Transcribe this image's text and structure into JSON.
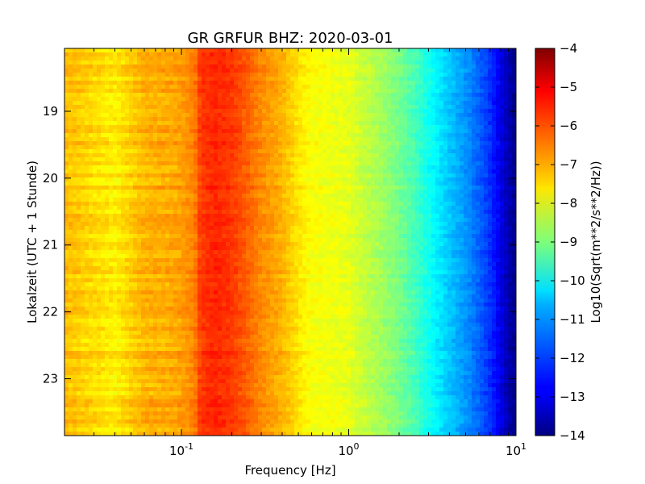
{
  "chart_data": {
    "type": "heatmap",
    "title": "GR GRFUR BHZ: 2020-03-01",
    "xlabel": "Frequency [Hz]",
    "ylabel": "Lokalzeit (UTC + 1 Stunde)",
    "x_scale": "log",
    "xlim": [
      0.02,
      10
    ],
    "x_ticks": [
      {
        "value": 0.1,
        "base": "10",
        "exp": "-1"
      },
      {
        "value": 1,
        "base": "10",
        "exp": "0"
      },
      {
        "value": 10,
        "base": "10",
        "exp": "1"
      }
    ],
    "ylim": [
      18.06,
      23.85
    ],
    "y_inverted": true,
    "y_ticks": [
      {
        "value": 19,
        "label": "19"
      },
      {
        "value": 20,
        "label": "20"
      },
      {
        "value": 21,
        "label": "21"
      },
      {
        "value": 22,
        "label": "22"
      },
      {
        "value": 23,
        "label": "23"
      }
    ],
    "colorbar": {
      "label": "Log10(Sqrt(m**2/s**2/Hz))",
      "colormap": "jet",
      "range": [
        -14,
        -4
      ],
      "ticks": [
        {
          "value": -4,
          "label": "−4"
        },
        {
          "value": -5,
          "label": "−5"
        },
        {
          "value": -6,
          "label": "−6"
        },
        {
          "value": -7,
          "label": "−7"
        },
        {
          "value": -8,
          "label": "−8"
        },
        {
          "value": -9,
          "label": "−9"
        },
        {
          "value": -10,
          "label": "−10"
        },
        {
          "value": -11,
          "label": "−11"
        },
        {
          "value": -12,
          "label": "−12"
        },
        {
          "value": -13,
          "label": "−13"
        },
        {
          "value": -14,
          "label": "−14"
        }
      ]
    },
    "spectrum_profile": {
      "frequency_hz": [
        0.02,
        0.04,
        0.06,
        0.09,
        0.1,
        0.12,
        0.13,
        0.16,
        0.2,
        0.25,
        0.3,
        0.4,
        0.5,
        0.6,
        0.8,
        1.0,
        1.2,
        1.5,
        2.0,
        2.5,
        3.0,
        4.0,
        5.0,
        6.0,
        7.0,
        8.0,
        9.0,
        10.0
      ],
      "value": [
        -7.1,
        -7.6,
        -7.0,
        -6.9,
        -6.8,
        -6.5,
        -5.8,
        -5.6,
        -5.8,
        -6.2,
        -6.6,
        -7.0,
        -7.5,
        -7.8,
        -7.9,
        -8.0,
        -8.3,
        -8.6,
        -9.1,
        -9.6,
        -10.1,
        -10.8,
        -11.3,
        -11.8,
        -12.3,
        -12.9,
        -13.5,
        -13.9
      ]
    }
  }
}
